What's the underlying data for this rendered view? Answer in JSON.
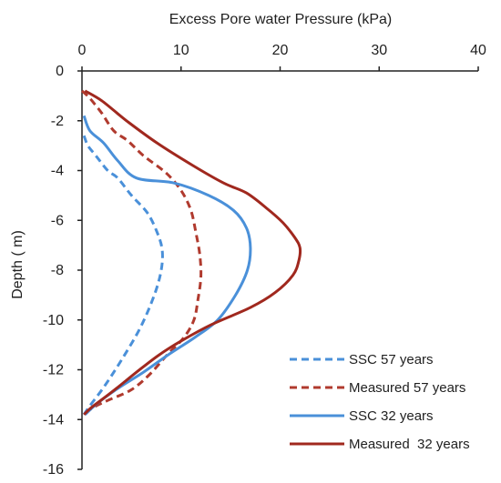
{
  "chart_data": {
    "type": "line",
    "title": "",
    "xlabel": "Excess Pore water Pressure (kPa)",
    "ylabel": "Depth ( m)",
    "xlim": [
      0,
      40
    ],
    "ylim": [
      -16,
      0
    ],
    "x_axis_position": "top",
    "x_ticks": [
      0,
      10,
      20,
      30,
      40
    ],
    "y_ticks": [
      0,
      -2,
      -4,
      -6,
      -8,
      -10,
      -12,
      -14,
      -16
    ],
    "grid": false,
    "legend_position": "bottom-right",
    "series": [
      {
        "name": "SSC 57 years",
        "color": "#4a90d9",
        "dash": "dashed",
        "points": [
          [
            0.2,
            -2.6
          ],
          [
            0.6,
            -3.0
          ],
          [
            1.4,
            -3.4
          ],
          [
            2.6,
            -4.0
          ],
          [
            3.6,
            -4.3
          ],
          [
            5.0,
            -5.0
          ],
          [
            6.6,
            -5.7
          ],
          [
            7.6,
            -6.5
          ],
          [
            8.1,
            -7.2
          ],
          [
            8.0,
            -8.0
          ],
          [
            7.3,
            -9.0
          ],
          [
            5.9,
            -10.3
          ],
          [
            4.0,
            -11.6
          ],
          [
            2.2,
            -12.7
          ],
          [
            0.7,
            -13.5
          ],
          [
            0.2,
            -13.8
          ]
        ]
      },
      {
        "name": "Measured 57 years",
        "color": "#b03a2e",
        "dash": "dashed",
        "points": [
          [
            0.0,
            -0.8
          ],
          [
            0.8,
            -1.1
          ],
          [
            2.0,
            -1.7
          ],
          [
            3.2,
            -2.4
          ],
          [
            4.6,
            -2.8
          ],
          [
            6.2,
            -3.4
          ],
          [
            8.5,
            -4.1
          ],
          [
            10.0,
            -4.8
          ],
          [
            11.0,
            -5.6
          ],
          [
            11.5,
            -6.5
          ],
          [
            11.9,
            -7.4
          ],
          [
            12.0,
            -8.3
          ],
          [
            11.7,
            -9.2
          ],
          [
            11.3,
            -10.0
          ],
          [
            10.3,
            -10.7
          ],
          [
            8.6,
            -11.4
          ],
          [
            6.8,
            -12.2
          ],
          [
            5.0,
            -12.8
          ],
          [
            2.8,
            -13.2
          ],
          [
            1.2,
            -13.5
          ],
          [
            0.2,
            -13.8
          ]
        ]
      },
      {
        "name": "SSC 32 years",
        "color": "#4a90d9",
        "dash": "solid",
        "points": [
          [
            0.2,
            -1.8
          ],
          [
            0.8,
            -2.4
          ],
          [
            2.2,
            -2.9
          ],
          [
            3.6,
            -3.6
          ],
          [
            5.5,
            -4.3
          ],
          [
            9.3,
            -4.5
          ],
          [
            12.8,
            -5.0
          ],
          [
            15.3,
            -5.6
          ],
          [
            16.6,
            -6.3
          ],
          [
            17.0,
            -7.1
          ],
          [
            16.7,
            -8.0
          ],
          [
            15.5,
            -9.0
          ],
          [
            13.7,
            -10.0
          ],
          [
            11.4,
            -10.7
          ],
          [
            8.7,
            -11.4
          ],
          [
            6.2,
            -12.1
          ],
          [
            3.8,
            -12.7
          ],
          [
            1.7,
            -13.3
          ],
          [
            0.3,
            -13.8
          ]
        ]
      },
      {
        "name": "Measured  32 years",
        "color": "#a0281e",
        "dash": "solid",
        "points": [
          [
            0.3,
            -0.8
          ],
          [
            2.0,
            -1.2
          ],
          [
            4.5,
            -2.0
          ],
          [
            7.6,
            -2.9
          ],
          [
            11.2,
            -3.8
          ],
          [
            14.3,
            -4.5
          ],
          [
            16.6,
            -4.9
          ],
          [
            18.6,
            -5.5
          ],
          [
            20.3,
            -6.1
          ],
          [
            21.5,
            -6.7
          ],
          [
            22.0,
            -7.1
          ],
          [
            21.9,
            -7.6
          ],
          [
            21.3,
            -8.2
          ],
          [
            19.5,
            -8.9
          ],
          [
            17.0,
            -9.5
          ],
          [
            13.0,
            -10.2
          ],
          [
            10.2,
            -10.8
          ],
          [
            7.8,
            -11.4
          ],
          [
            5.5,
            -12.1
          ],
          [
            3.0,
            -12.9
          ],
          [
            1.0,
            -13.5
          ],
          [
            0.2,
            -13.8
          ]
        ]
      }
    ]
  }
}
